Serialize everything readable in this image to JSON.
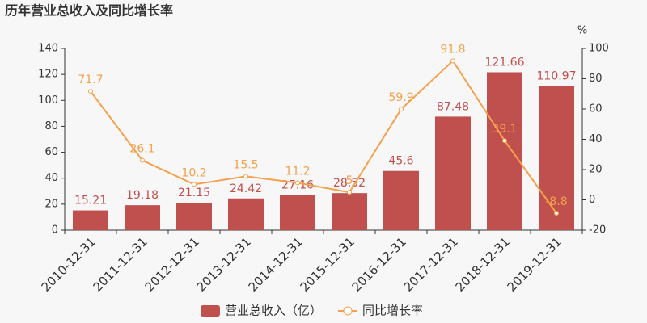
{
  "chart_data": {
    "type": "bar",
    "title": "历年营业总收入及同比增长率",
    "y2_label": "%",
    "categories": [
      "2010-12-31",
      "2011-12-31",
      "2012-12-31",
      "2013-12-31",
      "2014-12-31",
      "2015-12-31",
      "2016-12-31",
      "2017-12-31",
      "2018-12-31",
      "2019-12-31"
    ],
    "series": [
      {
        "name": "营业总收入（亿）",
        "type": "bar",
        "color": "#c0504d",
        "values": [
          15.21,
          19.18,
          21.15,
          24.42,
          27.16,
          28.52,
          45.6,
          87.48,
          121.66,
          110.97
        ]
      },
      {
        "name": "同比增长率",
        "type": "line",
        "axis": "y2",
        "color": "#f3a14c",
        "values": [
          71.7,
          26.1,
          10.2,
          15.5,
          11.2,
          5,
          59.9,
          91.8,
          39.1,
          -8.8
        ]
      }
    ],
    "ylim": [
      0,
      140
    ],
    "yticks": [
      0,
      20,
      40,
      60,
      80,
      100,
      120,
      140
    ],
    "y2lim": [
      -20,
      100
    ],
    "y2ticks": [
      -20,
      0,
      20,
      40,
      60,
      80,
      100
    ],
    "grid": false
  }
}
